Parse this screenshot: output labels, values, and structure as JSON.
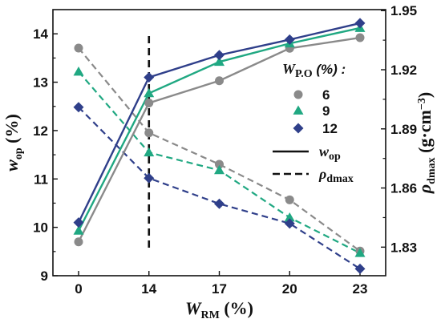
{
  "chart_data": {
    "type": "line",
    "title": "",
    "x": {
      "categories": [
        "0",
        "14",
        "17",
        "20",
        "23"
      ],
      "title_main": "W",
      "title_sub": "RM",
      "title_unit": " (%)"
    },
    "y_left": {
      "title_main": "w",
      "title_sub": "op",
      "title_unit": " (%)",
      "range": [
        9,
        14.5
      ],
      "ticks": [
        "9",
        "10",
        "11",
        "12",
        "13",
        "14"
      ]
    },
    "y_right": {
      "title_main": "ρ",
      "title_sub": "dmax",
      "title_unit": " (g·cm",
      "title_sup": "−3",
      "title_close": ")",
      "range": [
        1.8155,
        1.9505
      ],
      "ticks": [
        "1.83",
        "1.86",
        "1.89",
        "1.92",
        "1.95"
      ]
    },
    "annotation_line_x": "14",
    "legend": {
      "title_main": "W",
      "title_sub": "P.O",
      "title_unit": " (%) :",
      "wop_label_main": "w",
      "wop_label_sub": "op",
      "rho_label_main": "ρ",
      "rho_label_sub": "dmax"
    },
    "series": [
      {
        "name": "6",
        "color": "#8a8a8a",
        "marker": "circle",
        "wop": [
          9.7,
          12.57,
          13.03,
          13.7,
          13.92
        ],
        "rho": [
          1.931,
          1.888,
          1.872,
          1.854,
          1.828
        ]
      },
      {
        "name": "9",
        "color": "#20a882",
        "marker": "triangle",
        "wop": [
          9.93,
          12.77,
          13.42,
          13.8,
          14.12
        ],
        "rho": [
          1.919,
          1.878,
          1.869,
          1.845,
          1.827
        ]
      },
      {
        "name": "12",
        "color": "#2f3f8a",
        "marker": "diamond",
        "wop": [
          10.1,
          13.1,
          13.56,
          13.88,
          14.22
        ],
        "rho": [
          1.901,
          1.865,
          1.852,
          1.842,
          1.819
        ]
      }
    ]
  }
}
